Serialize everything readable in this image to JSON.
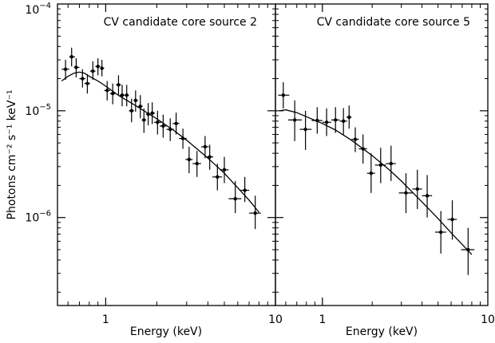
{
  "chart_data": [
    {
      "type": "scatter",
      "title": "CV candidate core source 2",
      "xlabel": "Energy (keV)",
      "ylabel": "Photons cm⁻² s⁻¹ keV⁻¹",
      "xscale": "log",
      "yscale": "log",
      "xlim": [
        0.52,
        10
      ],
      "ylim": [
        1.5e-07,
        0.0001
      ],
      "x_ticks": [
        {
          "value": 1,
          "label": "1"
        },
        {
          "value": 10,
          "label": "10"
        }
      ],
      "y_ticks": [
        {
          "value": 0.0001,
          "base": "10",
          "exp": "−4"
        },
        {
          "value": 1e-05,
          "base": "10",
          "exp": "−5"
        },
        {
          "value": 1e-06,
          "base": "10",
          "exp": "−6"
        }
      ],
      "grid": false,
      "series": [
        {
          "kind": "data_points",
          "points": [
            {
              "x": 0.58,
              "x_err": [
                0.55,
                0.61
              ],
              "y": 2.45e-05,
              "y_err": [
                1.95e-05,
                3e-05
              ]
            },
            {
              "x": 0.63,
              "x_err": [
                0.61,
                0.66
              ],
              "y": 3.2e-05,
              "y_err": [
                2.6e-05,
                3.9e-05
              ]
            },
            {
              "x": 0.67,
              "x_err": [
                0.65,
                0.7
              ],
              "y": 2.55e-05,
              "y_err": [
                2.05e-05,
                3.1e-05
              ]
            },
            {
              "x": 0.73,
              "x_err": [
                0.7,
                0.76
              ],
              "y": 2e-05,
              "y_err": [
                1.65e-05,
                2.45e-05
              ]
            },
            {
              "x": 0.78,
              "x_err": [
                0.75,
                0.81
              ],
              "y": 1.8e-05,
              "y_err": [
                1.45e-05,
                2.2e-05
              ]
            },
            {
              "x": 0.84,
              "x_err": [
                0.81,
                0.87
              ],
              "y": 2.35e-05,
              "y_err": [
                1.95e-05,
                2.9e-05
              ]
            },
            {
              "x": 0.9,
              "x_err": [
                0.87,
                0.93
              ],
              "y": 2.6e-05,
              "y_err": [
                2.15e-05,
                3.1e-05
              ]
            },
            {
              "x": 0.95,
              "x_err": [
                0.93,
                0.98
              ],
              "y": 2.5e-05,
              "y_err": [
                2.1e-05,
                3e-05
              ]
            },
            {
              "x": 1.02,
              "x_err": [
                0.98,
                1.06
              ],
              "y": 1.55e-05,
              "y_err": [
                1.25e-05,
                1.9e-05
              ]
            },
            {
              "x": 1.1,
              "x_err": [
                1.06,
                1.14
              ],
              "y": 1.45e-05,
              "y_err": [
                1.15e-05,
                1.8e-05
              ]
            },
            {
              "x": 1.19,
              "x_err": [
                1.15,
                1.23
              ],
              "y": 1.75e-05,
              "y_err": [
                1.4e-05,
                2.15e-05
              ]
            },
            {
              "x": 1.25,
              "x_err": [
                1.21,
                1.29
              ],
              "y": 1.4e-05,
              "y_err": [
                1.1e-05,
                1.75e-05
              ]
            },
            {
              "x": 1.33,
              "x_err": [
                1.29,
                1.37
              ],
              "y": 1.4e-05,
              "y_err": [
                1.1e-05,
                1.75e-05
              ]
            },
            {
              "x": 1.42,
              "x_err": [
                1.37,
                1.47
              ],
              "y": 1e-05,
              "y_err": [
                7.8e-06,
                1.3e-05
              ]
            },
            {
              "x": 1.5,
              "x_err": [
                1.46,
                1.55
              ],
              "y": 1.25e-05,
              "y_err": [
                9.8e-06,
                1.55e-05
              ]
            },
            {
              "x": 1.6,
              "x_err": [
                1.55,
                1.65
              ],
              "y": 1.1e-05,
              "y_err": [
                8.5e-06,
                1.4e-05
              ]
            },
            {
              "x": 1.68,
              "x_err": [
                1.63,
                1.73
              ],
              "y": 8.2e-06,
              "y_err": [
                6.2e-06,
                1.05e-05
              ]
            },
            {
              "x": 1.78,
              "x_err": [
                1.73,
                1.83
              ],
              "y": 9.3e-06,
              "y_err": [
                7.3e-06,
                1.18e-05
              ]
            },
            {
              "x": 1.88,
              "x_err": [
                1.83,
                1.95
              ],
              "y": 9.5e-06,
              "y_err": [
                7.5e-06,
                1.2e-05
              ]
            },
            {
              "x": 2.02,
              "x_err": [
                1.93,
                2.12
              ],
              "y": 7.8e-06,
              "y_err": [
                6e-06,
                1e-05
              ]
            },
            {
              "x": 2.18,
              "x_err": [
                2.08,
                2.28
              ],
              "y": 7.2e-06,
              "y_err": [
                5.6e-06,
                9.2e-06
              ]
            },
            {
              "x": 2.4,
              "x_err": [
                2.28,
                2.52
              ],
              "y": 6.7e-06,
              "y_err": [
                5.2e-06,
                8.5e-06
              ]
            },
            {
              "x": 2.6,
              "x_err": [
                2.48,
                2.72
              ],
              "y": 7.6e-06,
              "y_err": [
                6e-06,
                9.6e-06
              ]
            },
            {
              "x": 2.85,
              "x_err": [
                2.7,
                3.0
              ],
              "y": 5.5e-06,
              "y_err": [
                4.4e-06,
                6.8e-06
              ]
            },
            {
              "x": 3.1,
              "x_err": [
                2.95,
                3.25
              ],
              "y": 3.5e-06,
              "y_err": [
                2.6e-06,
                4.6e-06
              ]
            },
            {
              "x": 3.45,
              "x_err": [
                3.25,
                3.65
              ],
              "y": 3.2e-06,
              "y_err": [
                2.4e-06,
                4.2e-06
              ]
            },
            {
              "x": 3.85,
              "x_err": [
                3.65,
                4.05
              ],
              "y": 4.6e-06,
              "y_err": [
                3.6e-06,
                5.8e-06
              ]
            },
            {
              "x": 4.1,
              "x_err": [
                3.9,
                4.3
              ],
              "y": 3.7e-06,
              "y_err": [
                2.8e-06,
                4.8e-06
              ]
            },
            {
              "x": 4.55,
              "x_err": [
                4.25,
                4.85
              ],
              "y": 2.4e-06,
              "y_err": [
                1.8e-06,
                3.2e-06
              ]
            },
            {
              "x": 5.0,
              "x_err": [
                4.7,
                5.3
              ],
              "y": 2.8e-06,
              "y_err": [
                2.1e-06,
                3.7e-06
              ]
            },
            {
              "x": 5.8,
              "x_err": [
                5.3,
                6.3
              ],
              "y": 1.5e-06,
              "y_err": [
                1.1e-06,
                2.2e-06
              ]
            },
            {
              "x": 6.6,
              "x_err": [
                6.2,
                7.0
              ],
              "y": 1.8e-06,
              "y_err": [
                1.4e-06,
                2.4e-06
              ]
            },
            {
              "x": 7.6,
              "x_err": [
                7.0,
                8.2
              ],
              "y": 1.1e-06,
              "y_err": [
                7.8e-07,
                1.6e-06
              ]
            }
          ]
        },
        {
          "kind": "model_curve",
          "x": [
            0.55,
            0.6,
            0.65,
            0.7,
            0.75,
            0.8,
            0.9,
            1.0,
            1.2,
            1.5,
            2.0,
            2.5,
            3.0,
            4.0,
            5.0,
            6.0,
            7.0,
            8.0
          ],
          "y": [
            1.9e-05,
            2.1e-05,
            2.25e-05,
            2.3e-05,
            2.25e-05,
            2.1e-05,
            1.9e-05,
            1.7e-05,
            1.38e-05,
            1.12e-05,
            8.4e-06,
            6.6e-06,
            5.3e-06,
            3.6e-06,
            2.6e-06,
            1.9e-06,
            1.45e-06,
            1.12e-06
          ]
        }
      ]
    },
    {
      "type": "scatter",
      "title": "CV candidate core source 5",
      "xlabel": "Energy (keV)",
      "xscale": "log",
      "yscale": "log",
      "xlim": [
        0.52,
        10
      ],
      "ylim": [
        1.5e-07,
        0.0001
      ],
      "x_ticks": [
        {
          "value": 1,
          "label": "1"
        },
        {
          "value": 10,
          "label": "10"
        }
      ],
      "grid": false,
      "series": [
        {
          "kind": "data_points",
          "points": [
            {
              "x": 0.58,
              "x_err": [
                0.54,
                0.63
              ],
              "y": 1.4e-05,
              "y_err": [
                1.05e-05,
                1.85e-05
              ]
            },
            {
              "x": 0.68,
              "x_err": [
                0.62,
                0.75
              ],
              "y": 8.2e-06,
              "y_err": [
                5.2e-06,
                1.25e-05
              ]
            },
            {
              "x": 0.79,
              "x_err": [
                0.73,
                0.86
              ],
              "y": 6.7e-06,
              "y_err": [
                4.3e-06,
                1e-05
              ]
            },
            {
              "x": 0.93,
              "x_err": [
                0.86,
                1.0
              ],
              "y": 8.1e-06,
              "y_err": [
                6.1e-06,
                1.08e-05
              ]
            },
            {
              "x": 1.06,
              "x_err": [
                1.0,
                1.13
              ],
              "y": 7.8e-06,
              "y_err": [
                5.8e-06,
                1.05e-05
              ]
            },
            {
              "x": 1.2,
              "x_err": [
                1.13,
                1.27
              ],
              "y": 8.2e-06,
              "y_err": [
                6.2e-06,
                1.08e-05
              ]
            },
            {
              "x": 1.34,
              "x_err": [
                1.27,
                1.41
              ],
              "y": 8e-06,
              "y_err": [
                6e-06,
                1.06e-05
              ]
            },
            {
              "x": 1.45,
              "x_err": [
                1.4,
                1.5
              ],
              "y": 8.7e-06,
              "y_err": [
                6.8e-06,
                1.12e-05
              ]
            },
            {
              "x": 1.58,
              "x_err": [
                1.5,
                1.66
              ],
              "y": 5.4e-06,
              "y_err": [
                4.1e-06,
                7e-06
              ]
            },
            {
              "x": 1.76,
              "x_err": [
                1.66,
                1.86
              ],
              "y": 4.4e-06,
              "y_err": [
                3.2e-06,
                6e-06
              ]
            },
            {
              "x": 1.97,
              "x_err": [
                1.86,
                2.08
              ],
              "y": 2.6e-06,
              "y_err": [
                1.7e-06,
                4e-06
              ]
            },
            {
              "x": 2.25,
              "x_err": [
                2.08,
                2.42
              ],
              "y": 3.1e-06,
              "y_err": [
                2.1e-06,
                4.5e-06
              ]
            },
            {
              "x": 2.6,
              "x_err": [
                2.42,
                2.78
              ],
              "y": 3.2e-06,
              "y_err": [
                2.2e-06,
                4.7e-06
              ]
            },
            {
              "x": 3.2,
              "x_err": [
                2.9,
                3.5
              ],
              "y": 1.7e-06,
              "y_err": [
                1.1e-06,
                2.6e-06
              ]
            },
            {
              "x": 3.75,
              "x_err": [
                3.5,
                4.0
              ],
              "y": 1.85e-06,
              "y_err": [
                1.2e-06,
                2.8e-06
              ]
            },
            {
              "x": 4.3,
              "x_err": [
                4.0,
                4.6
              ],
              "y": 1.6e-06,
              "y_err": [
                1e-06,
                2.5e-06
              ]
            },
            {
              "x": 5.2,
              "x_err": [
                4.8,
                5.6
              ],
              "y": 7.3e-07,
              "y_err": [
                4.6e-07,
                1.15e-06
              ]
            },
            {
              "x": 6.1,
              "x_err": [
                5.7,
                6.5
              ],
              "y": 9.6e-07,
              "y_err": [
                6.2e-07,
                1.45e-06
              ]
            },
            {
              "x": 7.6,
              "x_err": [
                6.9,
                8.3
              ],
              "y": 5e-07,
              "y_err": [
                2.9e-07,
                8e-07
              ]
            }
          ]
        },
        {
          "kind": "model_curve",
          "x": [
            0.55,
            0.6,
            0.7,
            0.8,
            1.0,
            1.2,
            1.5,
            2.0,
            2.5,
            3.0,
            4.0,
            5.0,
            6.0,
            7.0,
            8.0
          ],
          "y": [
            1e-05,
            1.02e-05,
            9.6e-06,
            8.8e-06,
            7.6e-06,
            6.6e-06,
            5.3e-06,
            3.8e-06,
            2.85e-06,
            2.2e-06,
            1.4e-06,
            9.8e-07,
            7.2e-07,
            5.6e-07,
            4.5e-07
          ]
        }
      ]
    }
  ]
}
